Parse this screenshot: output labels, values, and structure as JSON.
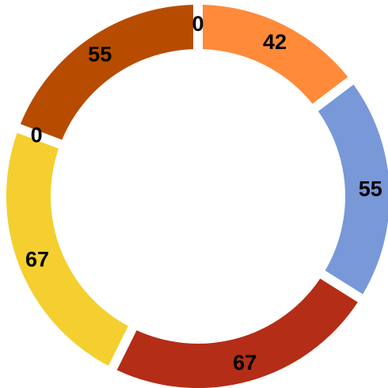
{
  "chart_data": {
    "type": "pie",
    "donut": true,
    "title": "",
    "legend": "none",
    "slices": [
      {
        "value": 42,
        "label": "42",
        "color": "#FF8A3A"
      },
      {
        "value": 55,
        "label": "55",
        "color": "#7898D8"
      },
      {
        "value": 67,
        "label": "67",
        "color": "#B42D17"
      },
      {
        "value": 67,
        "label": "67",
        "color": "#F4CF2F"
      },
      {
        "value": 0,
        "label": "0",
        "color": "#F4CF2F"
      },
      {
        "value": 55,
        "label": "55",
        "color": "#B74C00"
      },
      {
        "value": 0,
        "label": "0",
        "color": "#B74C00"
      }
    ]
  }
}
